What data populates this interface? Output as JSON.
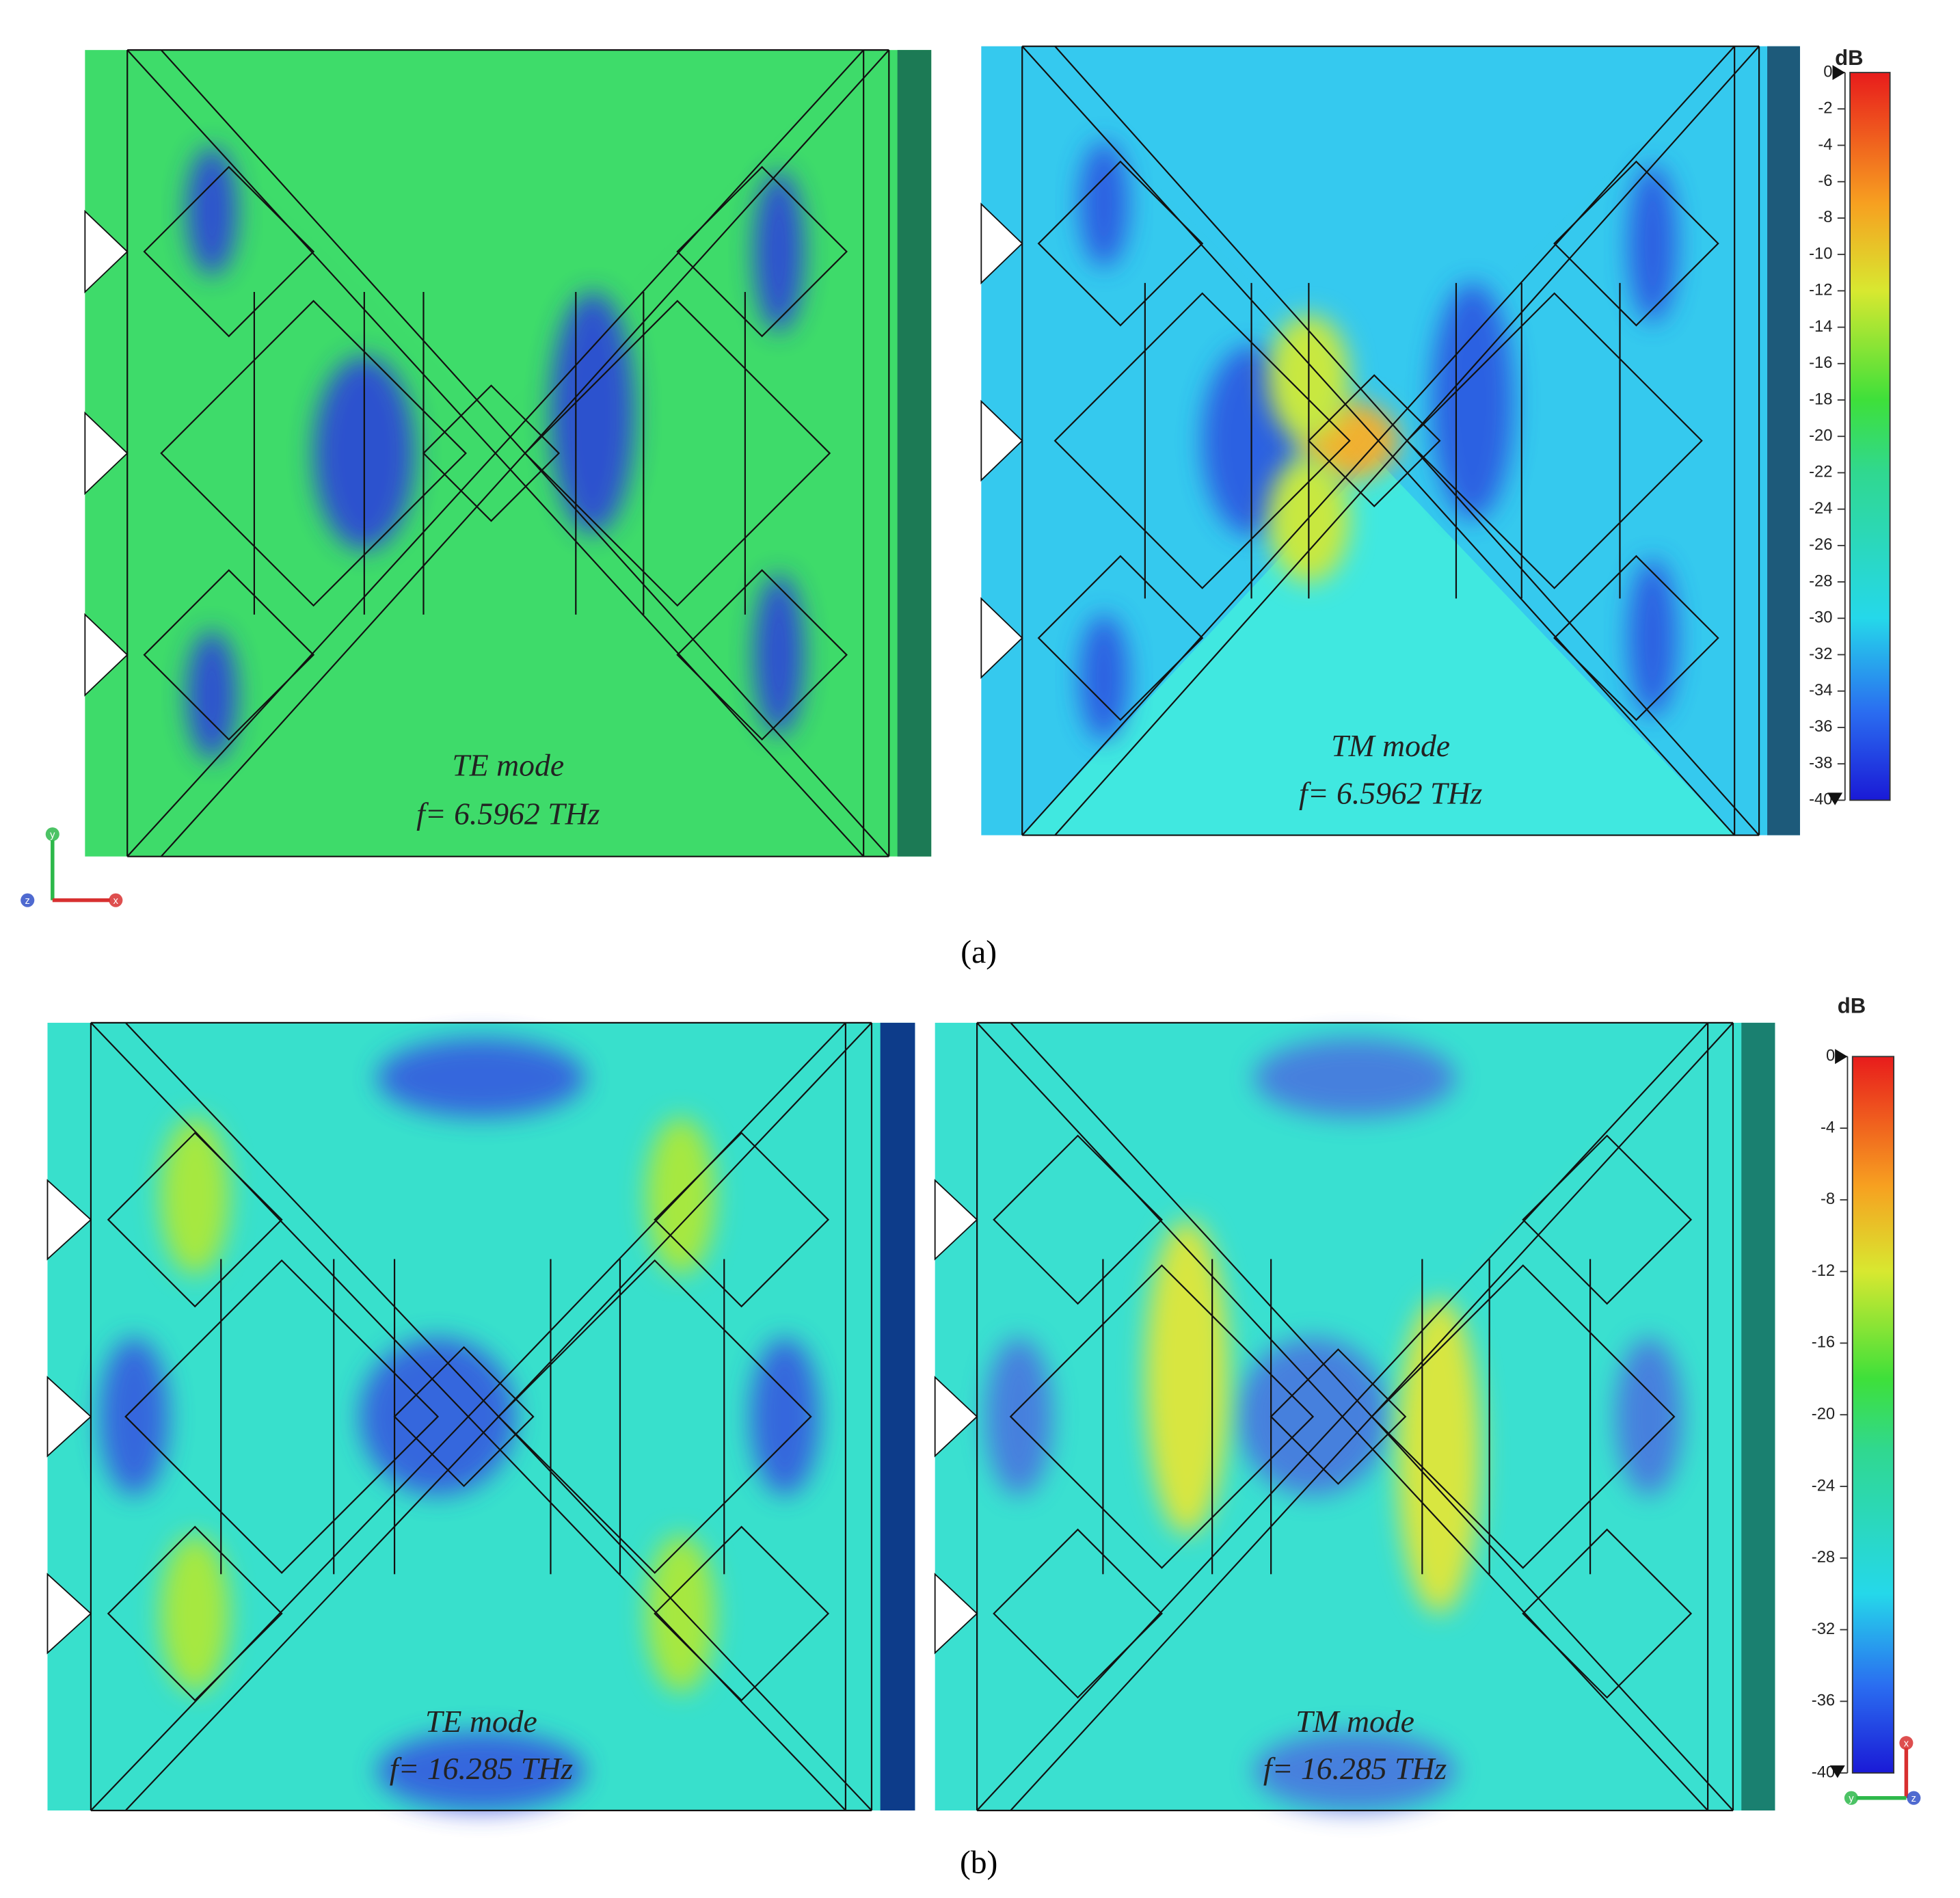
{
  "panels": [
    {
      "mode": "TE mode",
      "frequency": "f= 6.5962 THz"
    },
    {
      "mode": "TM mode",
      "frequency": "f= 6.5962 THz"
    },
    {
      "mode": "TE mode",
      "frequency": "f= 16.285 THz"
    },
    {
      "mode": "TM mode",
      "frequency": "f= 16.285 THz"
    }
  ],
  "captions": [
    "(a)",
    "(b)"
  ],
  "colorbars": [
    {
      "unit": "dB",
      "range": [
        -40,
        0
      ],
      "ticks": [
        0,
        -2,
        -4,
        -6,
        -8,
        -10,
        -12,
        -14,
        -16,
        -18,
        -20,
        -22,
        -24,
        -26,
        -28,
        -30,
        -32,
        -34,
        -36,
        -38,
        -40
      ]
    },
    {
      "unit": "dB",
      "range": [
        -40,
        0
      ],
      "ticks": [
        0,
        -4,
        -8,
        -12,
        -16,
        -20,
        -24,
        -28,
        -32,
        -36,
        -40
      ]
    }
  ],
  "triads": [
    {
      "labels": [
        "y",
        "z",
        "x"
      ]
    },
    {
      "labels": [
        "x",
        "y",
        "z"
      ]
    }
  ]
}
